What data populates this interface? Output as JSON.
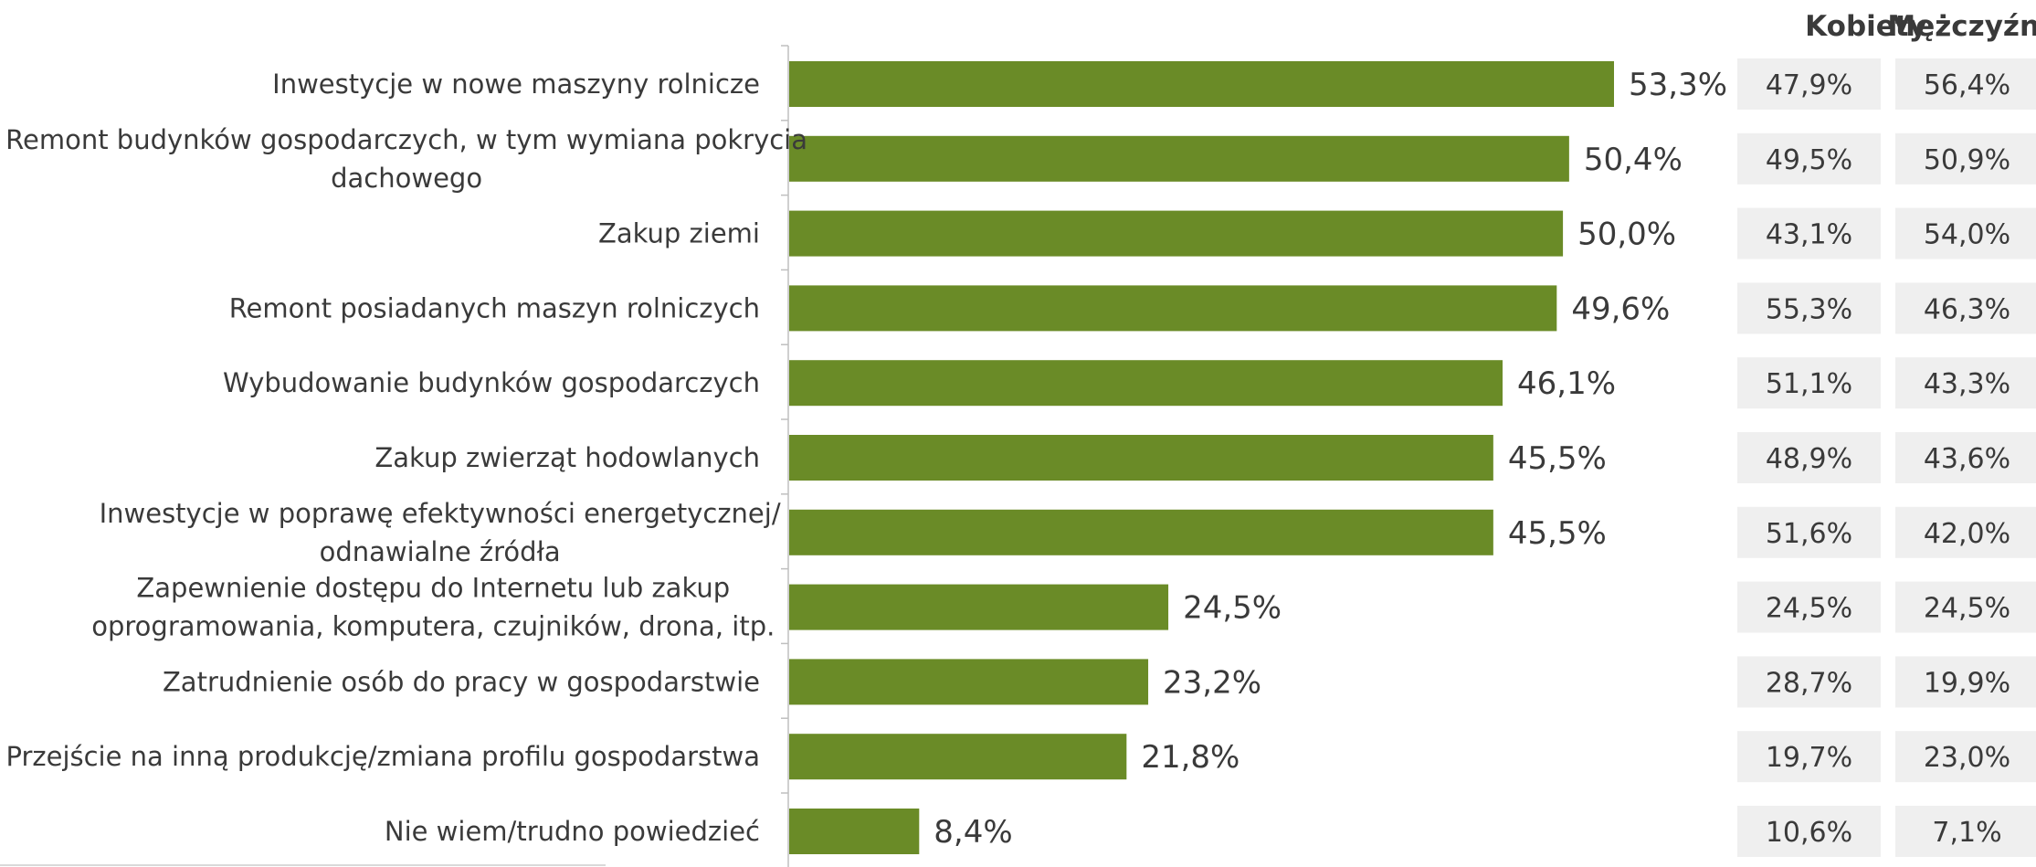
{
  "chart_data": {
    "type": "bar",
    "orientation": "horizontal",
    "categories": [
      [
        "Inwestycje w nowe maszyny rolnicze"
      ],
      [
        "Remont budynków gospodarczych, w tym wymiana pokrycia",
        "dachowego"
      ],
      [
        "Zakup ziemi"
      ],
      [
        "Remont posiadanych maszyn rolniczych"
      ],
      [
        "Wybudowanie budynków gospodarczych"
      ],
      [
        "Zakup zwierząt hodowlanych"
      ],
      [
        "Inwestycje w poprawę efektywności energetycznej/",
        "odnawialne źródła"
      ],
      [
        "Zapewnienie dostępu do Internetu lub zakup",
        "oprogramowania, komputera, czujników, drona, itp."
      ],
      [
        "Zatrudnienie osób do pracy w gospodarstwie"
      ],
      [
        "Przejście na inną produkcję/zmiana profilu gospodarstwa"
      ],
      [
        "Nie wiem/trudno powiedzieć"
      ]
    ],
    "values": [
      53.3,
      50.4,
      50.0,
      49.6,
      46.1,
      45.5,
      45.5,
      24.5,
      23.2,
      21.8,
      8.4
    ],
    "value_labels": [
      "53,3%",
      "50,4%",
      "50,0%",
      "49,6%",
      "46,1%",
      "45,5%",
      "45,5%",
      "24,5%",
      "23,2%",
      "21,8%",
      "8,4%"
    ],
    "xlim": [
      0,
      100
    ],
    "bar_color": "#6a8b27",
    "grid": false,
    "title": "",
    "xlabel": "",
    "ylabel": "",
    "table": {
      "columns": [
        "Kobiety",
        "Mężczyźni"
      ],
      "cell_color": "#efefef",
      "rows": [
        [
          "47,9%",
          "56,4%"
        ],
        [
          "49,5%",
          "50,9%"
        ],
        [
          "43,1%",
          "54,0%"
        ],
        [
          "55,3%",
          "46,3%"
        ],
        [
          "51,1%",
          "43,3%"
        ],
        [
          "48,9%",
          "43,6%"
        ],
        [
          "51,6%",
          "42,0%"
        ],
        [
          "24,5%",
          "24,5%"
        ],
        [
          "28,7%",
          "19,9%"
        ],
        [
          "19,7%",
          "23,0%"
        ],
        [
          "10,6%",
          "7,1%"
        ]
      ]
    }
  }
}
